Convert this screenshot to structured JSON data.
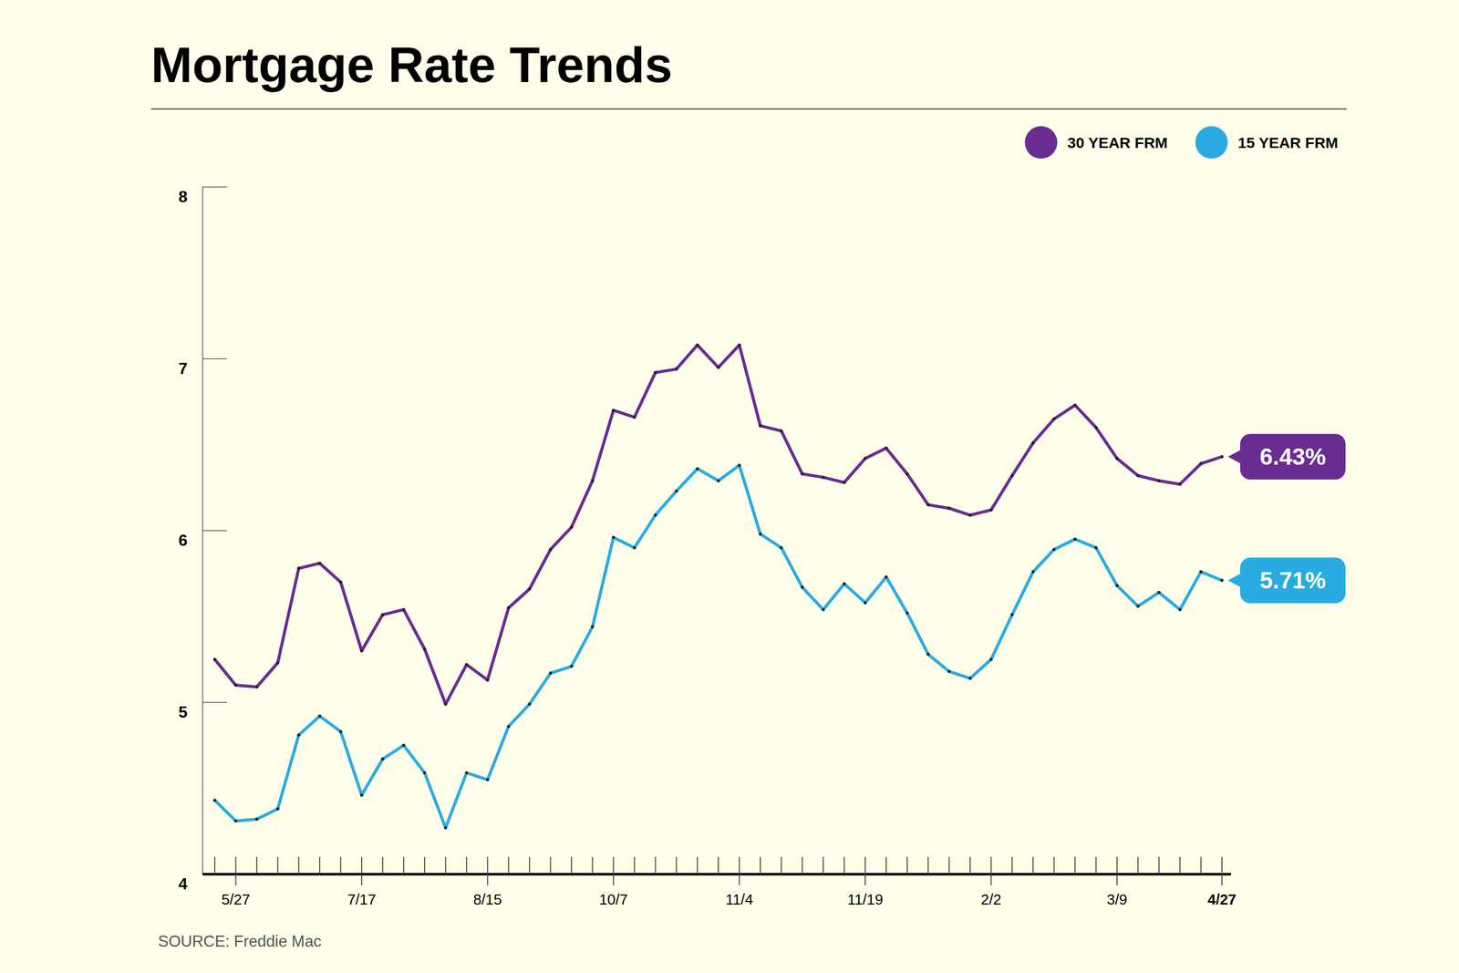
{
  "chart_data": {
    "type": "line",
    "title": "Mortgage Rate Trends",
    "source": "SOURCE: Freddie Mac",
    "categories": [
      null,
      "5/27",
      null,
      null,
      null,
      null,
      null,
      "7/17",
      null,
      null,
      null,
      null,
      null,
      "8/15",
      null,
      null,
      null,
      null,
      null,
      "10/7",
      null,
      null,
      null,
      null,
      null,
      "11/4",
      null,
      null,
      null,
      null,
      null,
      "11/19",
      null,
      null,
      null,
      null,
      null,
      "2/2",
      null,
      null,
      null,
      null,
      null,
      "3/9",
      null,
      null,
      null,
      null,
      "4/27"
    ],
    "series": [
      {
        "name": "30 YEAR FRM",
        "color": "#6a2c91",
        "marker": "dot",
        "end_label": "6.43%",
        "values": [
          5.25,
          5.1,
          5.09,
          5.23,
          5.78,
          5.81,
          5.7,
          5.3,
          5.51,
          5.54,
          5.31,
          4.99,
          5.22,
          5.13,
          5.55,
          5.66,
          5.89,
          6.02,
          6.29,
          6.7,
          6.66,
          6.92,
          6.94,
          7.08,
          6.95,
          7.08,
          6.61,
          6.58,
          6.33,
          6.31,
          6.28,
          6.42,
          6.48,
          6.33,
          6.15,
          6.13,
          6.09,
          6.12,
          6.32,
          6.51,
          6.65,
          6.73,
          6.6,
          6.42,
          6.32,
          6.29,
          6.27,
          6.39,
          6.43
        ]
      },
      {
        "name": "15 YEAR FRM",
        "color": "#29abe2",
        "marker": "dot",
        "end_label": "5.71%",
        "values": [
          4.43,
          4.31,
          4.32,
          4.38,
          4.81,
          4.92,
          4.83,
          4.46,
          4.67,
          4.75,
          4.59,
          4.27,
          4.59,
          4.55,
          4.86,
          4.99,
          5.17,
          5.21,
          5.44,
          5.96,
          5.9,
          6.09,
          6.23,
          6.36,
          6.29,
          6.38,
          5.98,
          5.9,
          5.67,
          5.54,
          5.69,
          5.58,
          5.73,
          5.52,
          5.28,
          5.18,
          5.14,
          5.25,
          5.51,
          5.76,
          5.89,
          5.95,
          5.9,
          5.68,
          5.56,
          5.64,
          5.54,
          5.76,
          5.71
        ]
      }
    ],
    "ylim": [
      4,
      8
    ],
    "yticks": [
      4,
      5,
      6,
      7,
      8
    ],
    "grid": false,
    "legend": "top-right"
  }
}
